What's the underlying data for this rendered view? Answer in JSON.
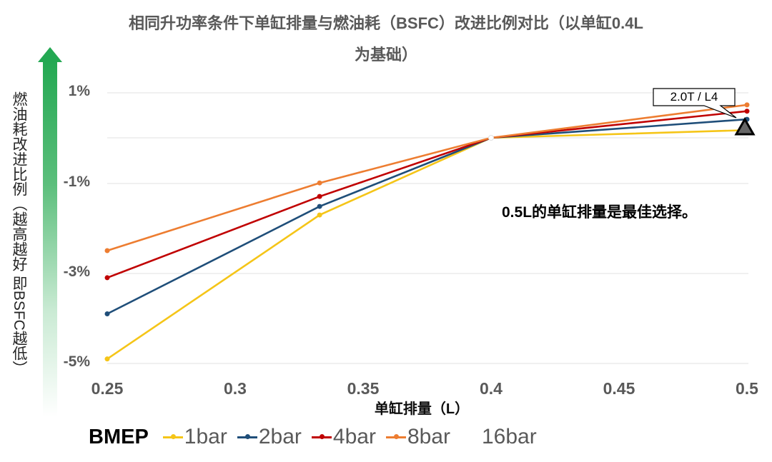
{
  "chart_data": {
    "type": "line",
    "title": "相同升功率条件下单缸排量与燃油耗（BSFC）改进比例对比（以单缸0.4L为基础）",
    "title_lines": [
      "相同升功率条件下单缸排量与燃油耗（BSFC）改进比例对比（以单缸0.4L",
      "为基础）"
    ],
    "xlabel": "单缸排量（L）",
    "ylabel": "燃油耗改进比例（越高越好 即BSFC越低）",
    "x": [
      0.25,
      0.333,
      0.4,
      0.5
    ],
    "xlim": [
      0.25,
      0.5
    ],
    "xticks": [
      "0.25",
      "0.3",
      "0.35",
      "0.4",
      "0.45",
      "0.5"
    ],
    "ylim": [
      -5,
      1
    ],
    "yticks": [
      "1%",
      "-1%",
      "-3%",
      "-5%"
    ],
    "ytick_values": [
      1,
      -1,
      -3,
      -5
    ],
    "grid": true,
    "legend_title": "BMEP",
    "legend_position": "bottom",
    "series": [
      {
        "name": "1bar",
        "color": "#f5c518",
        "values": [
          -4.9,
          -1.71,
          0,
          0.17
        ]
      },
      {
        "name": "2bar",
        "color": "#1f4e79",
        "values": [
          -3.9,
          -1.52,
          0,
          0.41
        ]
      },
      {
        "name": "4bar",
        "color": "#c00000",
        "values": [
          -3.1,
          -1.3,
          0,
          0.59
        ]
      },
      {
        "name": "8bar",
        "color": "#ed7d31",
        "values": [
          -2.5,
          -1.0,
          0,
          0.73
        ]
      },
      {
        "name": "16bar",
        "color": "#ffffff",
        "values": [
          null,
          null,
          0,
          null
        ]
      }
    ],
    "annotations": [
      {
        "text": "0.5L的单缸排量是最佳选择。",
        "type": "text"
      },
      {
        "text": "2.0T / L4",
        "type": "callout",
        "x": 0.5,
        "y": 0.41,
        "marker": "triangle"
      }
    ]
  },
  "title": {
    "line1": "相同升功率条件下单缸排量与燃油耗（BSFC）改进比例对比（以单缸0.4L",
    "line2": "为基础）"
  },
  "axes": {
    "ylabel": "燃油耗改进比例（越高越好 即BSFC越低）",
    "xlabel": "单缸排量（L）",
    "yticks": [
      "1%",
      "-1%",
      "-3%",
      "-5%"
    ],
    "xticks": [
      "0.25",
      "0.3",
      "0.35",
      "0.4",
      "0.45",
      "0.5"
    ]
  },
  "annotation": {
    "conclusion": "0.5L的单缸排量是最佳选择。",
    "callout": "2.0T / L4"
  },
  "legend": {
    "title": "BMEP",
    "items": [
      {
        "label": "1bar",
        "color": "#f5c518"
      },
      {
        "label": "2bar",
        "color": "#1f4e79"
      },
      {
        "label": "4bar",
        "color": "#c00000"
      },
      {
        "label": "8bar",
        "color": "#ed7d31"
      },
      {
        "label": "16bar",
        "color": "#ffffff"
      }
    ]
  },
  "colors": {
    "arrow_green": "#23a852",
    "gridline": "#e6e6e6",
    "axis_text": "#595959",
    "triangle_fill": "#666666"
  }
}
